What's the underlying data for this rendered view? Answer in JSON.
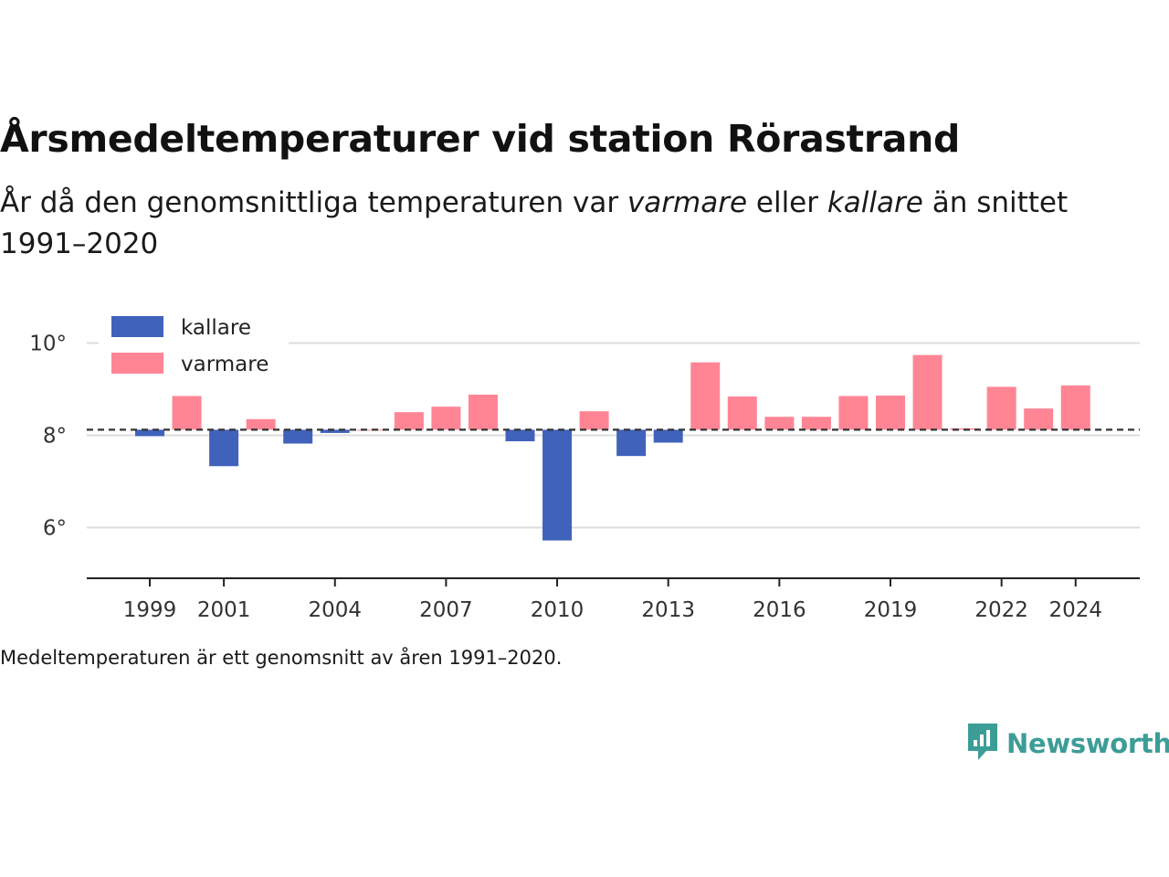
{
  "title": "Årsmedeltemperaturer vid station Rörastrand",
  "subtitle": {
    "part1": "År då den genomsnittliga temperaturen var ",
    "warmer_word": "varmare",
    "part2": " eller ",
    "colder_word": "kallare",
    "part3": " än snittet 1991–2020"
  },
  "footnote": "Medeltemperaturen är ett genomsnitt av åren 1991–2020.",
  "brand": {
    "name": "Newsworthy",
    "icon": "newsworthy-logo-icon"
  },
  "colors": {
    "colder": "#4062bb",
    "warmer": "#ff8595",
    "reference": "#333333",
    "grid": "#dddddd"
  },
  "chart_data": {
    "type": "bar",
    "baseline": 8.12,
    "baseline_style": "dashed",
    "ylim": [
      4.9,
      10.9
    ],
    "yticks": [
      6,
      8,
      10
    ],
    "ytick_labels": [
      "6°",
      "8°",
      "10°"
    ],
    "xticks": [
      1999,
      2001,
      2004,
      2007,
      2010,
      2013,
      2016,
      2019,
      2022,
      2024
    ],
    "grid": true,
    "legend_position": "top-left",
    "legend": [
      {
        "name": "kallare",
        "color": "#4062bb"
      },
      {
        "name": "varmare",
        "color": "#ff8595"
      }
    ],
    "years": [
      1999,
      2000,
      2001,
      2002,
      2003,
      2004,
      2005,
      2006,
      2007,
      2008,
      2009,
      2010,
      2011,
      2012,
      2013,
      2014,
      2015,
      2016,
      2017,
      2018,
      2019,
      2020,
      2021,
      2022,
      2023,
      2024
    ],
    "values": [
      7.98,
      8.85,
      7.33,
      8.35,
      7.82,
      8.05,
      8.12,
      8.5,
      8.62,
      8.88,
      7.87,
      5.72,
      8.52,
      7.55,
      7.84,
      9.58,
      8.84,
      8.4,
      8.4,
      8.85,
      8.86,
      9.74,
      8.15,
      9.05,
      8.58,
      9.08
    ]
  }
}
